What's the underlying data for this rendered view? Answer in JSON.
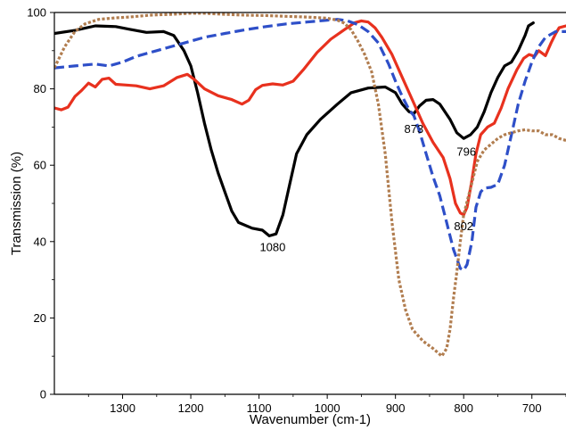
{
  "chart_data": {
    "type": "line",
    "xlabel": "Wavenumber (cm-1)",
    "ylabel": "Transmission (%)",
    "xlim": [
      1400,
      650
    ],
    "ylim": [
      0,
      100
    ],
    "x_reversed": true,
    "x_ticks": [
      1300,
      1200,
      1100,
      1000,
      900,
      800,
      700
    ],
    "y_ticks": [
      0,
      20,
      40,
      60,
      80,
      100
    ],
    "grid": false,
    "legend": "none",
    "series": [
      {
        "color": "#000000",
        "dash": "solid",
        "points": [
          [
            1400,
            94.5
          ],
          [
            1370,
            95.3
          ],
          [
            1340,
            96.5
          ],
          [
            1310,
            96.3
          ],
          [
            1290,
            95.6
          ],
          [
            1265,
            94.8
          ],
          [
            1240,
            95.0
          ],
          [
            1225,
            94.0
          ],
          [
            1210,
            90
          ],
          [
            1200,
            86
          ],
          [
            1190,
            79
          ],
          [
            1180,
            71
          ],
          [
            1170,
            64
          ],
          [
            1160,
            58
          ],
          [
            1150,
            53
          ],
          [
            1140,
            48
          ],
          [
            1130,
            45
          ],
          [
            1110,
            43.5
          ],
          [
            1095,
            43
          ],
          [
            1085,
            41.5
          ],
          [
            1075,
            42
          ],
          [
            1065,
            47
          ],
          [
            1055,
            55
          ],
          [
            1045,
            63
          ],
          [
            1030,
            68
          ],
          [
            1010,
            72
          ],
          [
            985,
            76
          ],
          [
            965,
            79
          ],
          [
            940,
            80.2
          ],
          [
            915,
            80.5
          ],
          [
            900,
            79
          ],
          [
            890,
            76
          ],
          [
            880,
            74
          ],
          [
            873,
            73.5
          ],
          [
            865,
            75.5
          ],
          [
            855,
            77
          ],
          [
            845,
            77.2
          ],
          [
            835,
            76
          ],
          [
            820,
            72
          ],
          [
            810,
            68.5
          ],
          [
            800,
            67
          ],
          [
            790,
            68
          ],
          [
            780,
            70
          ],
          [
            770,
            74
          ],
          [
            760,
            79
          ],
          [
            750,
            83
          ],
          [
            740,
            86
          ],
          [
            730,
            87
          ],
          [
            720,
            90
          ],
          [
            710,
            94
          ],
          [
            705,
            96.5
          ],
          [
            698,
            97.3
          ]
        ]
      },
      {
        "color": "#e8311e",
        "dash": "solid",
        "points": [
          [
            1400,
            75
          ],
          [
            1390,
            74.5
          ],
          [
            1380,
            75.2
          ],
          [
            1370,
            78
          ],
          [
            1360,
            79.6
          ],
          [
            1350,
            81.5
          ],
          [
            1340,
            80.5
          ],
          [
            1330,
            82.5
          ],
          [
            1320,
            82.8
          ],
          [
            1310,
            81.2
          ],
          [
            1295,
            81.0
          ],
          [
            1280,
            80.8
          ],
          [
            1260,
            80.0
          ],
          [
            1240,
            80.8
          ],
          [
            1220,
            83.0
          ],
          [
            1205,
            83.8
          ],
          [
            1195,
            82.5
          ],
          [
            1180,
            80.0
          ],
          [
            1160,
            78.2
          ],
          [
            1140,
            77.2
          ],
          [
            1125,
            76.0
          ],
          [
            1115,
            77.0
          ],
          [
            1105,
            79.8
          ],
          [
            1095,
            80.9
          ],
          [
            1080,
            81.3
          ],
          [
            1065,
            81.0
          ],
          [
            1050,
            82.0
          ],
          [
            1035,
            85.0
          ],
          [
            1015,
            89.5
          ],
          [
            995,
            93.0
          ],
          [
            975,
            95.5
          ],
          [
            960,
            97.3
          ],
          [
            950,
            97.8
          ],
          [
            940,
            97.5
          ],
          [
            930,
            96.0
          ],
          [
            920,
            93.5
          ],
          [
            905,
            89.0
          ],
          [
            890,
            83.0
          ],
          [
            875,
            77.0
          ],
          [
            860,
            71.0
          ],
          [
            845,
            66.0
          ],
          [
            830,
            62.0
          ],
          [
            820,
            56.5
          ],
          [
            812,
            50.0
          ],
          [
            805,
            47.5
          ],
          [
            800,
            47.0
          ],
          [
            795,
            49.0
          ],
          [
            788,
            56.0
          ],
          [
            782,
            63.0
          ],
          [
            775,
            68.0
          ],
          [
            765,
            70.0
          ],
          [
            755,
            71.0
          ],
          [
            745,
            75.0
          ],
          [
            735,
            80.0
          ],
          [
            722,
            85.0
          ],
          [
            712,
            88.0
          ],
          [
            704,
            89.0
          ],
          [
            696,
            88.5
          ],
          [
            690,
            90.0
          ],
          [
            680,
            88.7
          ],
          [
            672,
            92.0
          ],
          [
            665,
            94.5
          ],
          [
            660,
            96.0
          ],
          [
            650,
            96.5
          ]
        ]
      },
      {
        "color": "#2e4fc8",
        "dash": "dashed",
        "points": [
          [
            1400,
            85.5
          ],
          [
            1370,
            86.0
          ],
          [
            1340,
            86.5
          ],
          [
            1320,
            86.0
          ],
          [
            1300,
            87.0
          ],
          [
            1280,
            88.5
          ],
          [
            1250,
            90.0
          ],
          [
            1220,
            91.5
          ],
          [
            1200,
            92.5
          ],
          [
            1180,
            93.5
          ],
          [
            1150,
            94.5
          ],
          [
            1120,
            95.5
          ],
          [
            1090,
            96.3
          ],
          [
            1060,
            97.0
          ],
          [
            1030,
            97.5
          ],
          [
            1000,
            98.0
          ],
          [
            985,
            98.2
          ],
          [
            970,
            97.8
          ],
          [
            955,
            96.8
          ],
          [
            940,
            95.0
          ],
          [
            925,
            92.0
          ],
          [
            910,
            86.5
          ],
          [
            900,
            82.0
          ],
          [
            890,
            78.0
          ],
          [
            880,
            74.5
          ],
          [
            873,
            73.0
          ],
          [
            865,
            69.0
          ],
          [
            855,
            63.0
          ],
          [
            845,
            57.0
          ],
          [
            835,
            52.0
          ],
          [
            825,
            45.0
          ],
          [
            815,
            38.0
          ],
          [
            805,
            33.0
          ],
          [
            800,
            32.5
          ],
          [
            795,
            34.0
          ],
          [
            788,
            40.0
          ],
          [
            782,
            49.0
          ],
          [
            775,
            53.0
          ],
          [
            770,
            54.0
          ],
          [
            760,
            54.2
          ],
          [
            750,
            55.0
          ],
          [
            740,
            60.0
          ],
          [
            730,
            68.0
          ],
          [
            720,
            76.0
          ],
          [
            710,
            82.0
          ],
          [
            700,
            87.0
          ],
          [
            690,
            91.0
          ],
          [
            680,
            93.5
          ],
          [
            665,
            95.0
          ],
          [
            650,
            95.0
          ]
        ]
      },
      {
        "color": "#b17d4f",
        "dash": "dotted",
        "points": [
          [
            1400,
            85.5
          ],
          [
            1385,
            91.0
          ],
          [
            1370,
            95.0
          ],
          [
            1355,
            97.0
          ],
          [
            1335,
            98.2
          ],
          [
            1310,
            98.6
          ],
          [
            1290,
            98.8
          ],
          [
            1260,
            99.3
          ],
          [
            1230,
            99.5
          ],
          [
            1200,
            99.8
          ],
          [
            1180,
            99.8
          ],
          [
            1150,
            99.5
          ],
          [
            1120,
            99.3
          ],
          [
            1090,
            99.2
          ],
          [
            1060,
            99.0
          ],
          [
            1030,
            98.8
          ],
          [
            1000,
            98.5
          ],
          [
            985,
            98.0
          ],
          [
            975,
            97.2
          ],
          [
            965,
            95.5
          ],
          [
            955,
            92.5
          ],
          [
            945,
            89.0
          ],
          [
            935,
            84.5
          ],
          [
            925,
            76.0
          ],
          [
            915,
            63.0
          ],
          [
            905,
            45.0
          ],
          [
            895,
            30.0
          ],
          [
            885,
            22.0
          ],
          [
            875,
            17.0
          ],
          [
            860,
            14.0
          ],
          [
            845,
            12.0
          ],
          [
            832,
            10.0
          ],
          [
            825,
            12.0
          ],
          [
            820,
            17.0
          ],
          [
            815,
            25.0
          ],
          [
            810,
            32.0
          ],
          [
            805,
            40.0
          ],
          [
            800,
            47.0
          ],
          [
            790,
            54.0
          ],
          [
            780,
            61.0
          ],
          [
            770,
            64.0
          ],
          [
            760,
            65.5
          ],
          [
            750,
            67.0
          ],
          [
            740,
            68.0
          ],
          [
            730,
            68.5
          ],
          [
            720,
            69.0
          ],
          [
            710,
            69.3
          ],
          [
            700,
            69.0
          ],
          [
            690,
            69.0
          ],
          [
            680,
            68.0
          ],
          [
            670,
            68.0
          ],
          [
            660,
            67.0
          ],
          [
            650,
            66.5
          ]
        ]
      }
    ],
    "annotations": [
      {
        "text": "1080",
        "x": 1080,
        "y": 37.5
      },
      {
        "text": "873",
        "x": 873,
        "y": 68.5
      },
      {
        "text": "796",
        "x": 796,
        "y": 62.5
      },
      {
        "text": "802",
        "x": 800,
        "y": 43.0
      }
    ]
  }
}
